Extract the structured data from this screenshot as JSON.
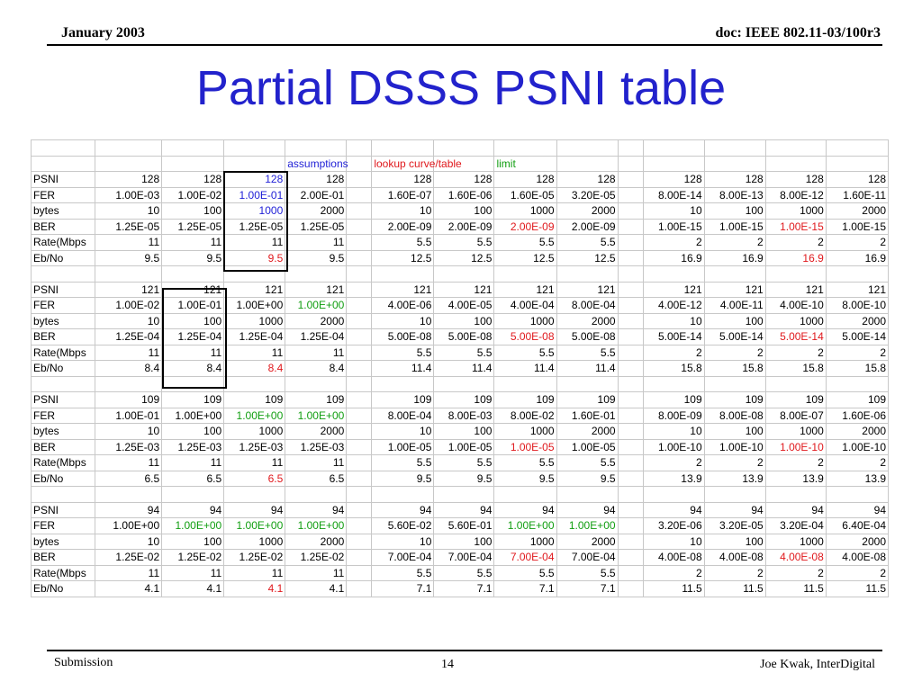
{
  "header": {
    "date": "January 2003",
    "doc": "doc: IEEE 802.11-03/100r3"
  },
  "title": "Partial DSSS PSNI table",
  "annotations": {
    "assumptions": "assumptions",
    "lookup": "lookup curve/table",
    "limit": "limit"
  },
  "colors": {
    "title": "#2222cc",
    "blue": "#1f1fd6",
    "red": "#e0181c",
    "green": "#119e11"
  },
  "blocks": [
    {
      "rows": [
        {
          "label": "PSNI",
          "values": [
            "128",
            "128",
            "128",
            "128",
            "",
            "128",
            "128",
            "128",
            "128",
            "",
            "128",
            "128",
            "128",
            "128"
          ]
        },
        {
          "label": "FER",
          "values": [
            "1.00E-03",
            "1.00E-02",
            "1.00E-01",
            "2.00E-01",
            "",
            "1.60E-07",
            "1.60E-06",
            "1.60E-05",
            "3.20E-05",
            "",
            "8.00E-14",
            "8.00E-13",
            "8.00E-12",
            "1.60E-11"
          ]
        },
        {
          "label": "bytes",
          "values": [
            "10",
            "100",
            "1000",
            "2000",
            "",
            "10",
            "100",
            "1000",
            "2000",
            "",
            "10",
            "100",
            "1000",
            "2000"
          ]
        },
        {
          "label": "BER",
          "values": [
            "1.25E-05",
            "1.25E-05",
            "1.25E-05",
            "1.25E-05",
            "",
            "2.00E-09",
            "2.00E-09",
            "2.00E-09",
            "2.00E-09",
            "",
            "1.00E-15",
            "1.00E-15",
            "1.00E-15",
            "1.00E-15"
          ]
        },
        {
          "label": "Rate(Mbps",
          "values": [
            "11",
            "11",
            "11",
            "11",
            "",
            "5.5",
            "5.5",
            "5.5",
            "5.5",
            "",
            "2",
            "2",
            "2",
            "2"
          ]
        },
        {
          "label": "Eb/No",
          "values": [
            "9.5",
            "9.5",
            "9.5",
            "9.5",
            "",
            "12.5",
            "12.5",
            "12.5",
            "12.5",
            "",
            "16.9",
            "16.9",
            "16.9",
            "16.9"
          ]
        }
      ]
    },
    {
      "rows": [
        {
          "label": "PSNI",
          "values": [
            "121",
            "121",
            "121",
            "121",
            "",
            "121",
            "121",
            "121",
            "121",
            "",
            "121",
            "121",
            "121",
            "121"
          ]
        },
        {
          "label": "FER",
          "values": [
            "1.00E-02",
            "1.00E-01",
            "1.00E+00",
            "1.00E+00",
            "",
            "4.00E-06",
            "4.00E-05",
            "4.00E-04",
            "8.00E-04",
            "",
            "4.00E-12",
            "4.00E-11",
            "4.00E-10",
            "8.00E-10"
          ]
        },
        {
          "label": "bytes",
          "values": [
            "10",
            "100",
            "1000",
            "2000",
            "",
            "10",
            "100",
            "1000",
            "2000",
            "",
            "10",
            "100",
            "1000",
            "2000"
          ]
        },
        {
          "label": "BER",
          "values": [
            "1.25E-04",
            "1.25E-04",
            "1.25E-04",
            "1.25E-04",
            "",
            "5.00E-08",
            "5.00E-08",
            "5.00E-08",
            "5.00E-08",
            "",
            "5.00E-14",
            "5.00E-14",
            "5.00E-14",
            "5.00E-14"
          ]
        },
        {
          "label": "Rate(Mbps",
          "values": [
            "11",
            "11",
            "11",
            "11",
            "",
            "5.5",
            "5.5",
            "5.5",
            "5.5",
            "",
            "2",
            "2",
            "2",
            "2"
          ]
        },
        {
          "label": "Eb/No",
          "values": [
            "8.4",
            "8.4",
            "8.4",
            "8.4",
            "",
            "11.4",
            "11.4",
            "11.4",
            "11.4",
            "",
            "15.8",
            "15.8",
            "15.8",
            "15.8"
          ]
        }
      ]
    },
    {
      "rows": [
        {
          "label": "PSNI",
          "values": [
            "109",
            "109",
            "109",
            "109",
            "",
            "109",
            "109",
            "109",
            "109",
            "",
            "109",
            "109",
            "109",
            "109"
          ]
        },
        {
          "label": "FER",
          "values": [
            "1.00E-01",
            "1.00E+00",
            "1.00E+00",
            "1.00E+00",
            "",
            "8.00E-04",
            "8.00E-03",
            "8.00E-02",
            "1.60E-01",
            "",
            "8.00E-09",
            "8.00E-08",
            "8.00E-07",
            "1.60E-06"
          ]
        },
        {
          "label": "bytes",
          "values": [
            "10",
            "100",
            "1000",
            "2000",
            "",
            "10",
            "100",
            "1000",
            "2000",
            "",
            "10",
            "100",
            "1000",
            "2000"
          ]
        },
        {
          "label": "BER",
          "values": [
            "1.25E-03",
            "1.25E-03",
            "1.25E-03",
            "1.25E-03",
            "",
            "1.00E-05",
            "1.00E-05",
            "1.00E-05",
            "1.00E-05",
            "",
            "1.00E-10",
            "1.00E-10",
            "1.00E-10",
            "1.00E-10"
          ]
        },
        {
          "label": "Rate(Mbps",
          "values": [
            "11",
            "11",
            "11",
            "11",
            "",
            "5.5",
            "5.5",
            "5.5",
            "5.5",
            "",
            "2",
            "2",
            "2",
            "2"
          ]
        },
        {
          "label": "Eb/No",
          "values": [
            "6.5",
            "6.5",
            "6.5",
            "6.5",
            "",
            "9.5",
            "9.5",
            "9.5",
            "9.5",
            "",
            "13.9",
            "13.9",
            "13.9",
            "13.9"
          ]
        }
      ]
    },
    {
      "rows": [
        {
          "label": "PSNI",
          "values": [
            "94",
            "94",
            "94",
            "94",
            "",
            "94",
            "94",
            "94",
            "94",
            "",
            "94",
            "94",
            "94",
            "94"
          ]
        },
        {
          "label": "FER",
          "values": [
            "1.00E+00",
            "1.00E+00",
            "1.00E+00",
            "1.00E+00",
            "",
            "5.60E-02",
            "5.60E-01",
            "1.00E+00",
            "1.00E+00",
            "",
            "3.20E-06",
            "3.20E-05",
            "3.20E-04",
            "6.40E-04"
          ]
        },
        {
          "label": "bytes",
          "values": [
            "10",
            "100",
            "1000",
            "2000",
            "",
            "10",
            "100",
            "1000",
            "2000",
            "",
            "10",
            "100",
            "1000",
            "2000"
          ]
        },
        {
          "label": "BER",
          "values": [
            "1.25E-02",
            "1.25E-02",
            "1.25E-02",
            "1.25E-02",
            "",
            "7.00E-04",
            "7.00E-04",
            "7.00E-04",
            "7.00E-04",
            "",
            "4.00E-08",
            "4.00E-08",
            "4.00E-08",
            "4.00E-08"
          ]
        },
        {
          "label": "Rate(Mbps",
          "values": [
            "11",
            "11",
            "11",
            "11",
            "",
            "5.5",
            "5.5",
            "5.5",
            "5.5",
            "",
            "2",
            "2",
            "2",
            "2"
          ]
        },
        {
          "label": "Eb/No",
          "values": [
            "4.1",
            "4.1",
            "4.1",
            "4.1",
            "",
            "7.1",
            "7.1",
            "7.1",
            "7.1",
            "",
            "11.5",
            "11.5",
            "11.5",
            "11.5"
          ]
        }
      ]
    }
  ],
  "cell_colors": {
    "0-0-2": "blue",
    "0-1-2": "blue",
    "0-2-2": "blue",
    "0-3-7": "red",
    "0-3-12": "red",
    "0-5-2": "red",
    "0-5-12": "red",
    "1-1-3": "green",
    "1-3-7": "red",
    "1-3-12": "red",
    "1-5-2": "red",
    "2-1-2": "green",
    "2-1-3": "green",
    "2-3-7": "red",
    "2-3-12": "red",
    "2-5-2": "red",
    "3-1-1": "green",
    "3-1-2": "green",
    "3-1-3": "green",
    "3-1-7": "green",
    "3-1-8": "green",
    "3-3-7": "red",
    "3-3-12": "red",
    "3-5-2": "red"
  },
  "footer": {
    "left": "Submission",
    "page": "14",
    "right": "Joe Kwak, InterDigital"
  }
}
